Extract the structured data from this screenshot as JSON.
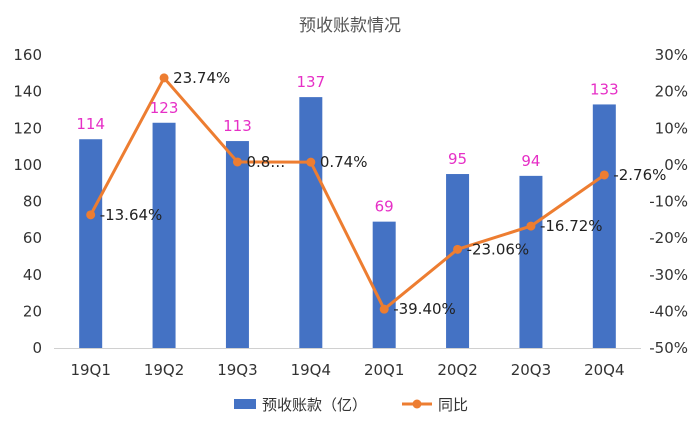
{
  "chart_data": {
    "type": "bar",
    "title": "预收账款情况",
    "categories": [
      "19Q1",
      "19Q2",
      "19Q3",
      "19Q4",
      "20Q1",
      "20Q2",
      "20Q3",
      "20Q4"
    ],
    "series": [
      {
        "name": "预收账款（亿）",
        "type": "bar",
        "axis": "left",
        "values": [
          114,
          123,
          113,
          137,
          69,
          95,
          94,
          133
        ],
        "labels": [
          "114",
          "123",
          "113",
          "137",
          "69",
          "95",
          "94",
          "133"
        ],
        "color": "#4472c4",
        "label_color": "#e62fc6"
      },
      {
        "name": "同比",
        "type": "line",
        "axis": "right",
        "values": [
          -13.64,
          23.74,
          0.8,
          0.74,
          -39.4,
          -23.06,
          -16.72,
          -2.76
        ],
        "labels": [
          "-13.64%",
          "23.74%",
          "0.8…",
          "0.74%",
          "-39.40%",
          "-23.06%",
          "-16.72%",
          "-2.76%"
        ],
        "color": "#ed7d31"
      }
    ],
    "y_left": {
      "min": 0,
      "max": 160,
      "step": 20,
      "ticks": [
        "0",
        "20",
        "40",
        "60",
        "80",
        "100",
        "120",
        "140",
        "160"
      ]
    },
    "y_right": {
      "min": -50,
      "max": 30,
      "step": 10,
      "ticks": [
        "-50%",
        "-40%",
        "-30%",
        "-20%",
        "-10%",
        "0%",
        "10%",
        "20%",
        "30%"
      ]
    },
    "grid": false,
    "legend_position": "bottom"
  }
}
